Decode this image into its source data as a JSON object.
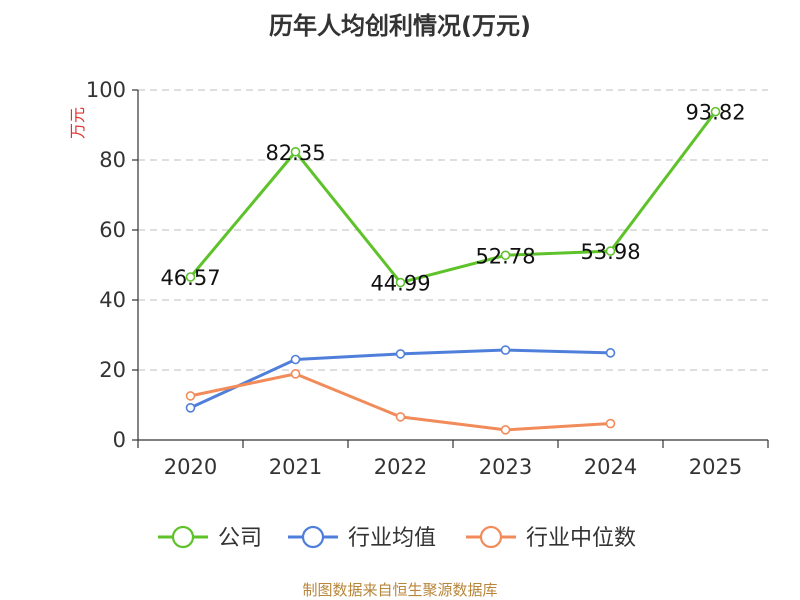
{
  "chart_data": {
    "type": "line",
    "title": "历年人均创利情况(万元)",
    "ylabel": "万元",
    "ylim": [
      0,
      100
    ],
    "yticks": [
      0,
      20,
      40,
      60,
      80,
      100
    ],
    "categories": [
      "2020",
      "2021",
      "2022",
      "2023",
      "2024",
      "2025"
    ],
    "grid": true,
    "legend_position": "bottom",
    "series": [
      {
        "name": "公司",
        "color": "#5ec22a",
        "values": [
          46.57,
          82.35,
          44.99,
          52.78,
          53.98,
          93.82
        ],
        "labels": [
          "46.57",
          "82.35",
          "44.99",
          "52.78",
          "53.98",
          "93.82"
        ]
      },
      {
        "name": "行业均值",
        "color": "#4f7fdb",
        "values": [
          9.2,
          23.0,
          24.6,
          25.7,
          24.9,
          null
        ]
      },
      {
        "name": "行业中位数",
        "color": "#f28b5a",
        "values": [
          12.6,
          18.9,
          6.6,
          2.9,
          4.7,
          null
        ]
      }
    ]
  },
  "source_text": "制图数据来自恒生聚源数据库"
}
